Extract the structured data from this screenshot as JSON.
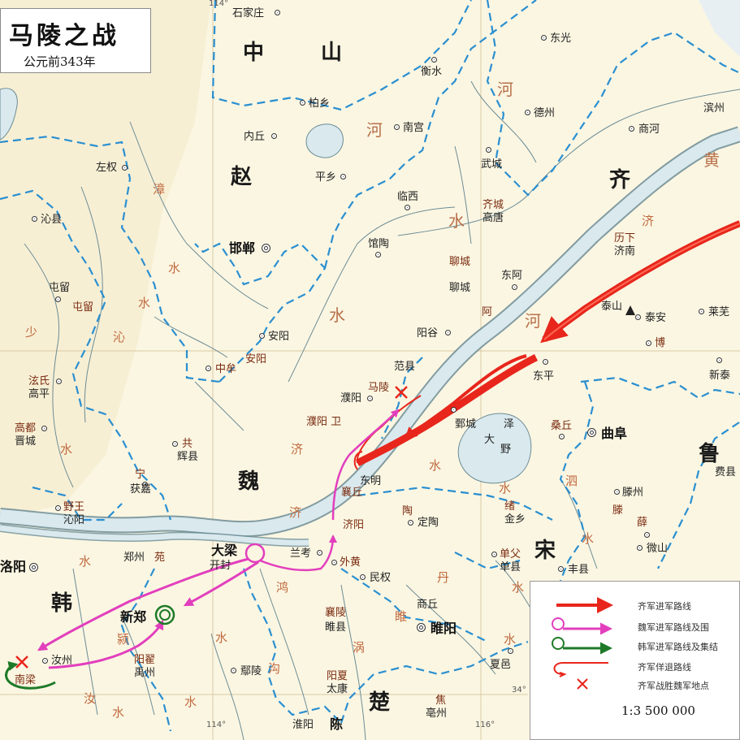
{
  "title": {
    "main": "马陵之战",
    "sub": "公元前343年"
  },
  "states": {
    "zhongshan_a": "中",
    "zhongshan_b": "山",
    "zhao": "赵",
    "qi": "齐",
    "wei": "魏",
    "han": "韩",
    "lu": "鲁",
    "song": "宋",
    "chu": "楚"
  },
  "capitals": {
    "handan": "邯郸",
    "daliang": "大梁",
    "xinzheng": "新郑",
    "luoyang": "洛阳",
    "qufu": "曲阜",
    "suiyang": "睢阳",
    "chen": "陈"
  },
  "places_modern": {
    "shijiazhuang": "石家庄",
    "boxiang": "柏乡",
    "hengshui": "衡水",
    "dongguang": "东光",
    "neiqiu": "内丘",
    "nangong": "南宫",
    "dezhou": "德州",
    "binzhou": "滨州",
    "shanghe": "商河",
    "pingxiang": "平乡",
    "wucheng": "武城",
    "zuoquan": "左权",
    "linxi": "临西",
    "gaotang": "高唐",
    "qinxian": "沁县",
    "guantao": "馆陶",
    "jinan": "济南",
    "liaocheng": "聊城",
    "donge": "东阿",
    "tunliu": "屯留",
    "taian": "泰安",
    "laiwu": "莱芜",
    "anyang": "安阳",
    "yanggu": "阳谷",
    "zhongmou": "中牟",
    "fanxian": "范县",
    "dongping": "东平",
    "xintai": "新泰",
    "gaoping": "高平",
    "puyang": "濮阳",
    "juancheng": "鄄城",
    "jincheng": "晋城",
    "huixian": "辉县",
    "huojia": "获嘉",
    "dongming": "东明",
    "feixian": "费县",
    "tengzhou": "滕州",
    "qinyang": "沁阳",
    "jinxiang": "金乡",
    "dingtao": "定陶",
    "kaifeng": "开封",
    "lankao": "兰考",
    "shanxian": "单县",
    "weishan": "微山",
    "fengxian": "丰县",
    "zhengzhou": "郑州",
    "minquan": "民权",
    "shangqiu": "商丘",
    "suixian": "睢县",
    "xiayi": "夏邑",
    "ruzhou": "汝州",
    "yuzhou": "禹州",
    "yanling": "鄢陵",
    "taikang": "太康",
    "huaiyang": "淮阳",
    "bozhou": "亳州"
  },
  "places_ancient": {
    "qicheng": "齐城",
    "licheng": "聊城",
    "a": "阿",
    "lixia": "历下",
    "bo": "博",
    "maling": "马陵",
    "zhongmou_old": "中牟",
    "anyang_old": "安阳",
    "tunliu_old": "屯留",
    "quanqiu": "泫氏",
    "gaodu": "高都",
    "gong": "共",
    "ning": "宁",
    "yewang": "野王",
    "puyang_wei": "濮阳 卫",
    "yiqiu": "襄丘",
    "jiyang": "济阳",
    "tao": "陶",
    "xu": "绪",
    "shanfu": "单父",
    "waihuang": "外黄",
    "sangqiu": "桑丘",
    "teng": "滕",
    "xue": "薛",
    "xiangling": "襄陵",
    "yangdi": "阳翟",
    "yangxia": "阳夏",
    "jiao": "焦",
    "nanliang": "南梁",
    "yuan": "苑"
  },
  "features": {
    "taishan": "泰山",
    "daye": "大",
    "daye2": "野",
    "ze": "泽"
  },
  "rivers": {
    "he1": "河",
    "he2": "河",
    "shui1": "水",
    "he3": "河",
    "shui2": "水",
    "zhang": "漳",
    "shui3": "水",
    "qin": "沁",
    "qin2": "水",
    "shao": "少",
    "shui4": "水",
    "ji1": "济",
    "ji2": "济",
    "ji3": "济",
    "shui5": "水",
    "huang": "黄",
    "si": "泗",
    "shui6": "水",
    "ru": "汝",
    "shui7": "水",
    "ying": "颍",
    "shui8": "水",
    "hong": "鸿",
    "gou": "沟",
    "dan": "丹",
    "shui9": "水",
    "sui": "睢",
    "shui10": "水",
    "guo": "涡",
    "shui11": "水",
    "shui12": "水",
    "shui13": "水"
  },
  "grid": {
    "lon114_top": "114°",
    "lon114_bot": "114°",
    "lon116_bot": "116°",
    "lat34": "34°"
  },
  "legend": {
    "qi_advance": "齐军进军路线",
    "wei_advance": "魏军进军路线及围",
    "han_advance": "韩军进军路线及集结",
    "qi_feint": "齐军佯退路线",
    "qi_victory": "齐军战胜魏军地点",
    "scale": "1:3 500 000"
  },
  "colors": {
    "qi": "#e8261c",
    "wei": "#e23fbd",
    "han": "#1e7a28",
    "border": "#2a8fd0",
    "river": "#d9e9ee",
    "river_edge": "#6c8c95",
    "land": "#fbf6e2"
  }
}
